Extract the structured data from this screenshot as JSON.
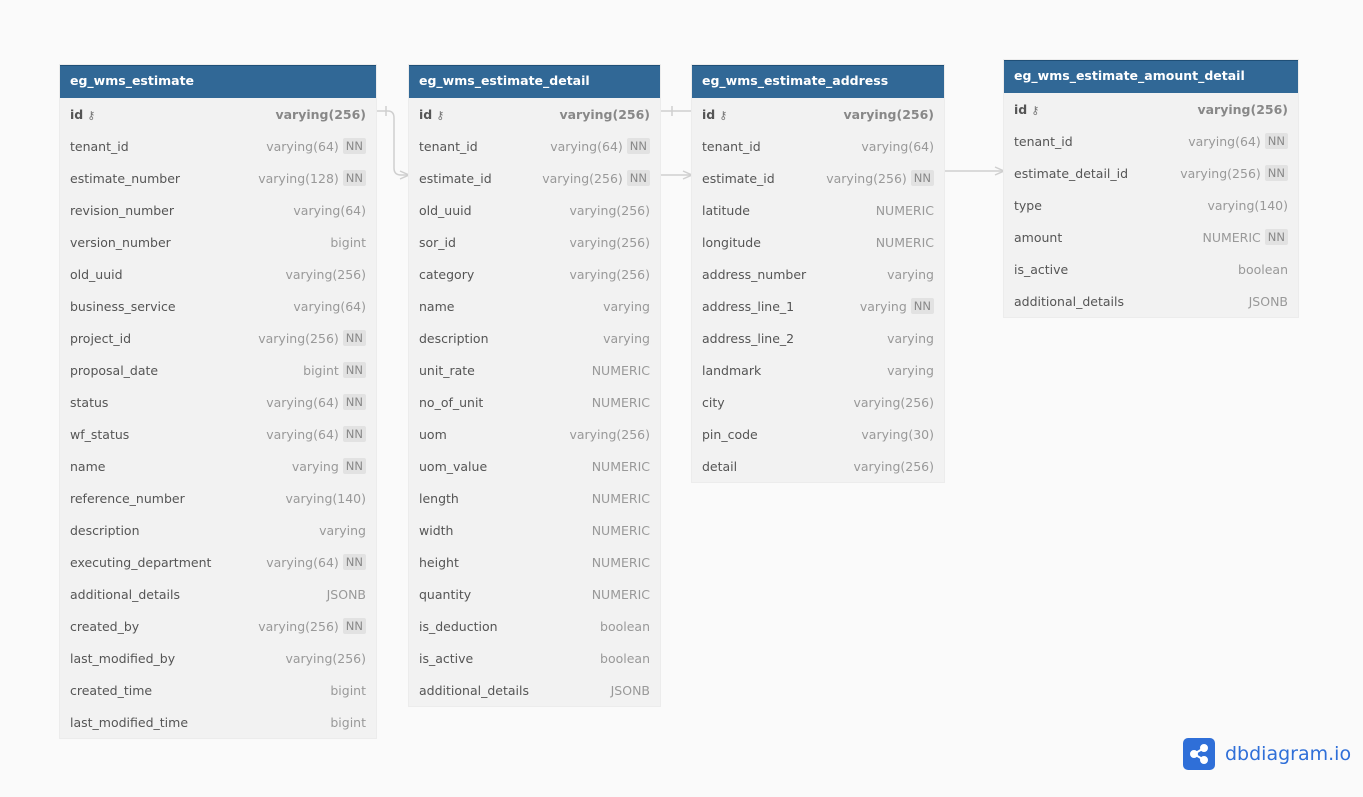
{
  "tables": [
    {
      "name": "eg_wms_estimate",
      "columns": [
        [
          "id",
          "varying(256)",
          false,
          true
        ],
        [
          "tenant_id",
          "varying(64)",
          true
        ],
        [
          "estimate_number",
          "varying(128)",
          true
        ],
        [
          "revision_number",
          "varying(64)",
          false
        ],
        [
          "version_number",
          "bigint",
          false
        ],
        [
          "old_uuid",
          "varying(256)",
          false
        ],
        [
          "business_service",
          "varying(64)",
          false
        ],
        [
          "project_id",
          "varying(256)",
          true
        ],
        [
          "proposal_date",
          "bigint",
          true
        ],
        [
          "status",
          "varying(64)",
          true
        ],
        [
          "wf_status",
          "varying(64)",
          true
        ],
        [
          "name",
          "varying",
          true
        ],
        [
          "reference_number",
          "varying(140)",
          false
        ],
        [
          "description",
          "varying",
          false
        ],
        [
          "executing_department",
          "varying(64)",
          true
        ],
        [
          "additional_details",
          "JSONB",
          false
        ],
        [
          "created_by",
          "varying(256)",
          true
        ],
        [
          "last_modified_by",
          "varying(256)",
          false
        ],
        [
          "created_time",
          "bigint",
          false
        ],
        [
          "last_modified_time",
          "bigint",
          false
        ]
      ]
    },
    {
      "name": "eg_wms_estimate_detail",
      "columns": [
        [
          "id",
          "varying(256)",
          false,
          true
        ],
        [
          "tenant_id",
          "varying(64)",
          true
        ],
        [
          "estimate_id",
          "varying(256)",
          true
        ],
        [
          "old_uuid",
          "varying(256)",
          false
        ],
        [
          "sor_id",
          "varying(256)",
          false
        ],
        [
          "category",
          "varying(256)",
          false
        ],
        [
          "name",
          "varying",
          false
        ],
        [
          "description",
          "varying",
          false
        ],
        [
          "unit_rate",
          "NUMERIC",
          false
        ],
        [
          "no_of_unit",
          "NUMERIC",
          false
        ],
        [
          "uom",
          "varying(256)",
          false
        ],
        [
          "uom_value",
          "NUMERIC",
          false
        ],
        [
          "length",
          "NUMERIC",
          false
        ],
        [
          "width",
          "NUMERIC",
          false
        ],
        [
          "height",
          "NUMERIC",
          false
        ],
        [
          "quantity",
          "NUMERIC",
          false
        ],
        [
          "is_deduction",
          "boolean",
          false
        ],
        [
          "is_active",
          "boolean",
          false
        ],
        [
          "additional_details",
          "JSONB",
          false
        ]
      ]
    },
    {
      "name": "eg_wms_estimate_address",
      "columns": [
        [
          "id",
          "varying(256)",
          false,
          true
        ],
        [
          "tenant_id",
          "varying(64)",
          false
        ],
        [
          "estimate_id",
          "varying(256)",
          true
        ],
        [
          "latitude",
          "NUMERIC",
          false
        ],
        [
          "longitude",
          "NUMERIC",
          false
        ],
        [
          "address_number",
          "varying",
          false
        ],
        [
          "address_line_1",
          "varying",
          true
        ],
        [
          "address_line_2",
          "varying",
          false
        ],
        [
          "landmark",
          "varying",
          false
        ],
        [
          "city",
          "varying(256)",
          false
        ],
        [
          "pin_code",
          "varying(30)",
          false
        ],
        [
          "detail",
          "varying(256)",
          false
        ]
      ]
    },
    {
      "name": "eg_wms_estimate_amount_detail",
      "columns": [
        [
          "id",
          "varying(256)",
          false,
          true
        ],
        [
          "tenant_id",
          "varying(64)",
          true
        ],
        [
          "estimate_detail_id",
          "varying(256)",
          true
        ],
        [
          "type",
          "varying(140)",
          false
        ],
        [
          "amount",
          "NUMERIC",
          true
        ],
        [
          "is_active",
          "boolean",
          false
        ],
        [
          "additional_details",
          "JSONB",
          false
        ]
      ]
    }
  ],
  "nn_label": "NN",
  "brand": "dbdiagram.io",
  "colors": {
    "header": "#316896",
    "brand": "#2f6fd8"
  }
}
